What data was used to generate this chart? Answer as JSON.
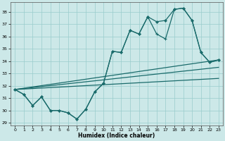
{
  "xlabel": "Humidex (Indice chaleur)",
  "bg_color": "#cce8e8",
  "grid_color": "#99cccc",
  "line_color": "#1a6b6b",
  "xlim": [
    -0.5,
    23.5
  ],
  "ylim": [
    28.8,
    38.8
  ],
  "yticks": [
    29,
    30,
    31,
    32,
    33,
    34,
    35,
    36,
    37,
    38
  ],
  "xticks": [
    0,
    1,
    2,
    3,
    4,
    5,
    6,
    7,
    8,
    9,
    10,
    11,
    12,
    13,
    14,
    15,
    16,
    17,
    18,
    19,
    20,
    21,
    22,
    23
  ],
  "line1_x": [
    0,
    1,
    2,
    3,
    4,
    5,
    6,
    7,
    8,
    9,
    10,
    11,
    12,
    13,
    14,
    15,
    16,
    17,
    18,
    19,
    20,
    21,
    22,
    23
  ],
  "line1_y": [
    31.7,
    31.3,
    30.4,
    31.1,
    30.0,
    30.0,
    29.8,
    29.3,
    30.1,
    31.5,
    32.2,
    34.8,
    34.7,
    36.5,
    36.2,
    37.6,
    36.2,
    35.8,
    38.2,
    38.3,
    37.3,
    34.7,
    33.9,
    34.1
  ],
  "line2_x": [
    0,
    1,
    2,
    3,
    4,
    5,
    6,
    7,
    8,
    9,
    10,
    11,
    12,
    13,
    14,
    15,
    16,
    17,
    18,
    19,
    20,
    21,
    22,
    23
  ],
  "line2_y": [
    31.7,
    31.3,
    30.4,
    31.1,
    30.0,
    30.0,
    29.8,
    29.3,
    30.1,
    31.5,
    32.2,
    34.8,
    34.7,
    36.5,
    36.2,
    37.6,
    37.2,
    37.3,
    38.2,
    38.3,
    37.3,
    34.7,
    33.9,
    34.1
  ],
  "trend1": [
    31.7,
    34.1
  ],
  "trend2": [
    31.7,
    33.5
  ],
  "trend3": [
    31.7,
    32.6
  ]
}
